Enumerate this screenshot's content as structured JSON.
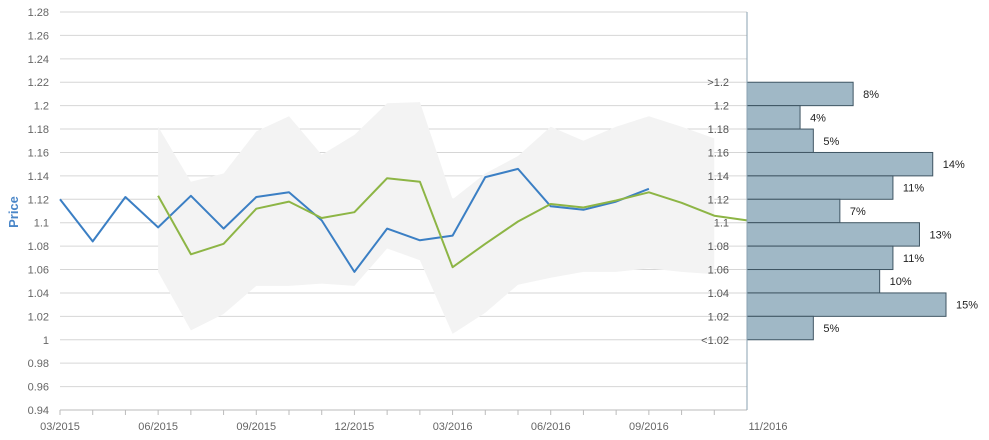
{
  "chart_data": {
    "type": "line",
    "ylabel": "Price",
    "ylim": [
      0.94,
      1.28
    ],
    "yticks": [
      "0.94",
      "0.96",
      "0.98",
      "1",
      "1.02",
      "1.04",
      "1.06",
      "1.08",
      "1.1",
      "1.12",
      "1.14",
      "1.16",
      "1.18",
      "1.2",
      "1.22",
      "1.24",
      "1.26",
      "1.28"
    ],
    "x_tick_labels": [
      "03/2015",
      "06/2015",
      "09/2015",
      "12/2015",
      "03/2016",
      "06/2016",
      "09/2016",
      "11/2016"
    ],
    "series": [
      {
        "color": "#3b7fc4",
        "points": [
          [
            "2015-03",
            1.12
          ],
          [
            "2015-04",
            1.084
          ],
          [
            "2015-05",
            1.122
          ],
          [
            "2015-06",
            1.096
          ],
          [
            "2015-07",
            1.123
          ],
          [
            "2015-08",
            1.095
          ],
          [
            "2015-09",
            1.122
          ],
          [
            "2015-10",
            1.126
          ],
          [
            "2015-11",
            1.102
          ],
          [
            "2015-12",
            1.058
          ],
          [
            "2016-01",
            1.095
          ],
          [
            "2016-02",
            1.085
          ],
          [
            "2016-03",
            1.089
          ],
          [
            "2016-04",
            1.139
          ],
          [
            "2016-05",
            1.146
          ],
          [
            "2016-06",
            1.114
          ],
          [
            "2016-07",
            1.111
          ],
          [
            "2016-08",
            1.118
          ],
          [
            "2016-09",
            1.129
          ]
        ]
      },
      {
        "color": "#8db545",
        "points": [
          [
            "2015-06",
            1.123
          ],
          [
            "2015-07",
            1.073
          ],
          [
            "2015-08",
            1.082
          ],
          [
            "2015-09",
            1.112
          ],
          [
            "2015-10",
            1.118
          ],
          [
            "2015-11",
            1.104
          ],
          [
            "2015-12",
            1.109
          ],
          [
            "2016-01",
            1.138
          ],
          [
            "2016-02",
            1.135
          ],
          [
            "2016-03",
            1.062
          ],
          [
            "2016-04",
            1.082
          ],
          [
            "2016-05",
            1.101
          ],
          [
            "2016-06",
            1.116
          ],
          [
            "2016-07",
            1.113
          ],
          [
            "2016-08",
            1.119
          ],
          [
            "2016-09",
            1.126
          ],
          [
            "2016-10",
            1.117
          ],
          [
            "2016-11",
            1.106
          ],
          [
            "2016-12",
            1.102
          ]
        ]
      }
    ],
    "band": {
      "color": "#f3f3f3",
      "points": [
        [
          "2015-06",
          1.058,
          1.182
        ],
        [
          "2015-07",
          1.008,
          1.135
        ],
        [
          "2015-08",
          1.022,
          1.142
        ],
        [
          "2015-09",
          1.046,
          1.178
        ],
        [
          "2015-10",
          1.046,
          1.191
        ],
        [
          "2015-11",
          1.048,
          1.158
        ],
        [
          "2015-12",
          1.046,
          1.175
        ],
        [
          "2016-01",
          1.078,
          1.202
        ],
        [
          "2016-02",
          1.068,
          1.203
        ],
        [
          "2016-03",
          1.005,
          1.12
        ],
        [
          "2016-04",
          1.023,
          1.142
        ],
        [
          "2016-05",
          1.047,
          1.157
        ],
        [
          "2016-06",
          1.053,
          1.182
        ],
        [
          "2016-07",
          1.058,
          1.17
        ],
        [
          "2016-08",
          1.058,
          1.182
        ],
        [
          "2016-09",
          1.061,
          1.191
        ],
        [
          "2016-10",
          1.058,
          1.182
        ],
        [
          "2016-11",
          1.056,
          1.172
        ]
      ]
    },
    "histogram": {
      "color": "#a0b8c6",
      "bins": [
        {
          "label": ">1.2",
          "low": 1.2,
          "high": 1.22,
          "percent": "8%",
          "value": 8
        },
        {
          "label": "1.2",
          "low": 1.18,
          "high": 1.2,
          "percent": "4%",
          "value": 4
        },
        {
          "label": "1.18",
          "low": 1.16,
          "high": 1.18,
          "percent": "5%",
          "value": 5
        },
        {
          "label": "1.16",
          "low": 1.14,
          "high": 1.16,
          "percent": "14%",
          "value": 14
        },
        {
          "label": "1.14",
          "low": 1.12,
          "high": 1.14,
          "percent": "11%",
          "value": 11
        },
        {
          "label": "1.12",
          "low": 1.1,
          "high": 1.12,
          "percent": "7%",
          "value": 7
        },
        {
          "label": "1.1",
          "low": 1.08,
          "high": 1.1,
          "percent": "13%",
          "value": 13
        },
        {
          "label": "1.08",
          "low": 1.06,
          "high": 1.08,
          "percent": "11%",
          "value": 11
        },
        {
          "label": "1.06",
          "low": 1.04,
          "high": 1.06,
          "percent": "10%",
          "value": 10
        },
        {
          "label": "1.04",
          "low": 1.02,
          "high": 1.04,
          "percent": "15%",
          "value": 15
        },
        {
          "label": "1.02",
          "low": 1.0,
          "high": 1.02,
          "percent": "5%",
          "value": 5
        },
        {
          "label": "<1.02",
          "low": 0.98,
          "high": 1.0,
          "percent": "",
          "value": 0
        }
      ]
    },
    "grid": true
  }
}
